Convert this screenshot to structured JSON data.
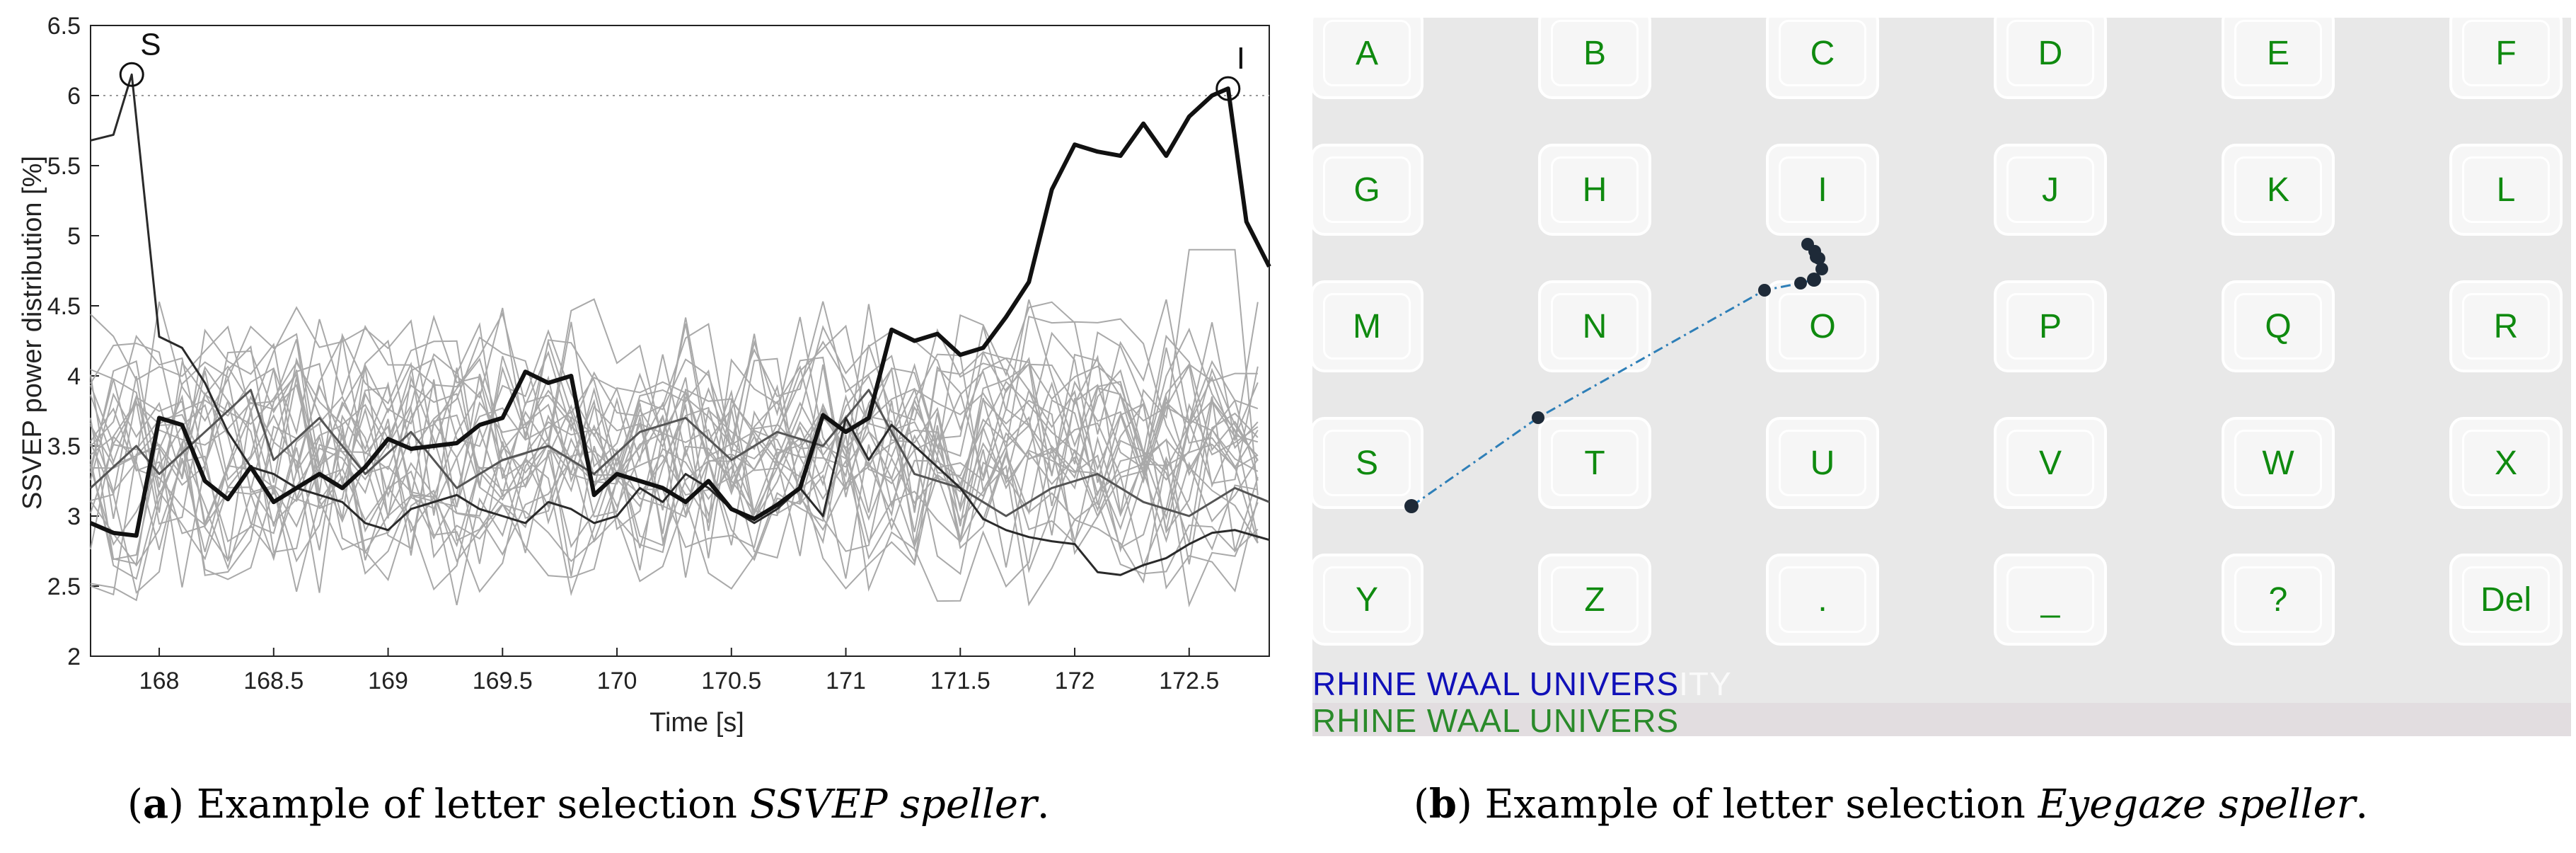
{
  "chart_data": {
    "type": "line",
    "xlabel": "Time [s]",
    "ylabel": "SSVEP power distribution [%]",
    "xlim": [
      167.7,
      172.85
    ],
    "ylim": [
      2,
      6.5
    ],
    "xticks": [
      168,
      168.5,
      169,
      169.5,
      170,
      170.5,
      171,
      171.5,
      172,
      172.5
    ],
    "yticks": [
      2,
      2.5,
      3,
      3.5,
      4,
      4.5,
      5,
      5.5,
      6,
      6.5
    ],
    "threshold": 6,
    "annotations": [
      {
        "label": "S",
        "x": 167.88,
        "y": 6.15
      },
      {
        "label": "I",
        "x": 172.67,
        "y": 6.05
      }
    ],
    "series": [
      {
        "style": "bold-black",
        "x": [
          167.7,
          167.8,
          167.9,
          168.0,
          168.1,
          168.2,
          168.3,
          168.4,
          168.5,
          168.6,
          168.7,
          168.8,
          168.9,
          169.0,
          169.1,
          169.2,
          169.3,
          169.4,
          169.5,
          169.6,
          169.7,
          169.8,
          169.9,
          170.0,
          170.1,
          170.2,
          170.3,
          170.4,
          170.5,
          170.6,
          170.7,
          170.8,
          170.9,
          171.0,
          171.1,
          171.2,
          171.3,
          171.4,
          171.5,
          171.6,
          171.7,
          171.8,
          171.9,
          172.0,
          172.1,
          172.2,
          172.3,
          172.4,
          172.5,
          172.6,
          172.67,
          172.75,
          172.85
        ],
        "y": [
          2.95,
          2.88,
          2.86,
          3.7,
          3.65,
          3.25,
          3.12,
          3.35,
          3.1,
          3.2,
          3.3,
          3.2,
          3.35,
          3.55,
          3.48,
          3.5,
          3.52,
          3.65,
          3.7,
          4.03,
          3.95,
          4.0,
          3.15,
          3.3,
          3.25,
          3.2,
          3.1,
          3.25,
          3.05,
          2.98,
          3.08,
          3.2,
          3.72,
          3.6,
          3.7,
          4.33,
          4.25,
          4.3,
          4.15,
          4.2,
          4.42,
          4.67,
          5.33,
          5.65,
          5.6,
          5.57,
          5.8,
          5.57,
          5.85,
          6.0,
          6.05,
          5.1,
          4.78
        ]
      },
      {
        "style": "thin-black",
        "x": [
          167.7,
          167.8,
          167.88,
          168.0,
          168.1,
          168.2,
          168.3,
          168.4,
          168.5,
          168.6,
          168.7,
          168.8,
          168.9,
          169.0,
          169.1,
          169.2,
          169.3,
          169.4,
          169.5,
          169.6,
          169.7,
          169.8,
          169.9,
          170.0,
          170.1,
          170.2,
          170.3,
          170.4,
          170.5,
          170.6,
          170.7,
          170.8,
          170.9,
          171.0,
          171.1,
          171.2,
          171.3,
          171.4,
          171.5,
          171.6,
          171.7,
          171.8,
          171.9,
          172.0,
          172.1,
          172.2,
          172.3,
          172.4,
          172.5,
          172.6,
          172.7,
          172.85
        ],
        "y": [
          5.68,
          5.72,
          6.15,
          4.28,
          4.2,
          3.95,
          3.6,
          3.35,
          3.3,
          3.2,
          3.15,
          3.1,
          2.95,
          2.9,
          3.05,
          3.1,
          3.15,
          3.05,
          3.0,
          2.95,
          3.1,
          3.05,
          2.95,
          3.0,
          3.2,
          3.1,
          3.3,
          3.2,
          3.05,
          2.95,
          3.05,
          3.2,
          3.0,
          3.7,
          3.4,
          3.65,
          3.5,
          3.35,
          3.2,
          2.98,
          2.9,
          2.85,
          2.82,
          2.8,
          2.6,
          2.58,
          2.65,
          2.7,
          2.8,
          2.88,
          2.9,
          2.83
        ]
      },
      {
        "style": "dark-gray",
        "x": [
          167.7,
          167.9,
          168.0,
          168.2,
          168.4,
          168.5,
          168.7,
          168.9,
          169.1,
          169.3,
          169.5,
          169.7,
          169.9,
          170.1,
          170.3,
          170.5,
          170.7,
          170.9,
          171.1,
          171.3,
          171.5,
          171.7,
          171.9,
          172.1,
          172.3,
          172.5,
          172.7,
          172.85
        ],
        "y": [
          3.2,
          3.5,
          3.3,
          3.6,
          3.9,
          3.4,
          3.7,
          3.3,
          3.6,
          3.2,
          3.4,
          3.5,
          3.3,
          3.6,
          3.7,
          3.4,
          3.6,
          3.5,
          3.9,
          3.3,
          3.2,
          3.0,
          3.2,
          3.3,
          3.1,
          3.0,
          3.2,
          3.1
        ]
      }
    ]
  },
  "speller": {
    "keys": [
      [
        "A",
        "B",
        "C",
        "D",
        "E",
        "F"
      ],
      [
        "G",
        "H",
        "I",
        "J",
        "K",
        "L"
      ],
      [
        "M",
        "N",
        "O",
        "P",
        "Q",
        "R"
      ],
      [
        "S",
        "T",
        "U",
        "V",
        "W",
        "X"
      ],
      [
        "Y",
        "Z",
        ".",
        "_",
        "?",
        "Del"
      ]
    ],
    "typed_target": "RHINE WAAL UNIVERS",
    "typed_target_faded": "ITY",
    "typed_input": "RHINE WAAL UNIVERS",
    "colors": {
      "key_text": "#0f8a0f",
      "target_text": "#1010b8",
      "input_text": "#2a8a2a",
      "gaze_path": "#2e7fb8",
      "gaze_point": "#1e2a38"
    }
  },
  "captions": {
    "a": {
      "tag": "a",
      "pre": ") Example of letter selection ",
      "em": "SSVEP speller",
      "post": "."
    },
    "b": {
      "tag": "b",
      "pre": ") Example of letter selection ",
      "em": "Eyegaze speller",
      "post": "."
    }
  }
}
